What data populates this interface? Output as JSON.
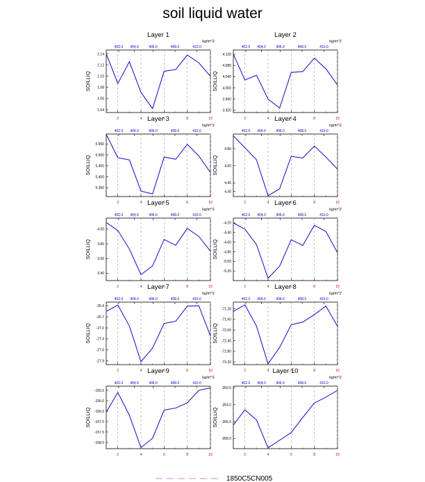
{
  "title": "soil liquid water",
  "colors": {
    "line": "#3a10c8",
    "bottom_ticks": "#c00000",
    "top_ticks": "#0000cc",
    "legend_dash": "#cc88dd"
  },
  "legend": {
    "label": "1850C5CN005"
  },
  "chart_data": [
    {
      "type": "line",
      "title": "Layer 1",
      "ylabel": "SOILLIQ",
      "unit": "kg/m^2",
      "x": [
        1,
        2,
        3,
        4,
        5,
        6,
        7,
        8,
        9,
        10
      ],
      "ylim": [
        1.035,
        1.147
      ],
      "yticks": [
        "1.14",
        "1.12",
        "1.10",
        "1.08",
        "1.06",
        "1.04"
      ],
      "ytick_values": [
        1.14,
        1.12,
        1.1,
        1.08,
        1.06,
        1.04
      ],
      "top_ticks": [
        "402.0",
        "404.0",
        "406.0",
        "408.0",
        "410.0"
      ],
      "series": [
        {
          "values": [
            1.14,
            1.087,
            1.126,
            1.071,
            1.042,
            1.109,
            1.112,
            1.138,
            1.124,
            1.1
          ]
        }
      ]
    },
    {
      "type": "line",
      "title": "Layer 2",
      "ylabel": "SOILLIQ",
      "unit": "kg/m^2",
      "x": [
        1,
        2,
        3,
        4,
        5,
        6,
        7,
        8,
        9,
        10
      ],
      "ylim": [
        3.912,
        4.135
      ],
      "yticks": [
        "4.120",
        "4.080",
        "4.040",
        "4.000",
        "3.960",
        "3.920"
      ],
      "ytick_values": [
        4.12,
        4.08,
        4.04,
        4.0,
        3.96,
        3.92
      ],
      "top_ticks": [
        "402.0",
        "404.0",
        "406.0",
        "408.0",
        "410.0"
      ],
      "series": [
        {
          "values": [
            4.12,
            4.028,
            4.045,
            3.96,
            3.928,
            4.055,
            4.058,
            4.106,
            4.068,
            4.01
          ]
        }
      ]
    },
    {
      "type": "line",
      "title": "Layer 3",
      "ylabel": "SOILLIQ",
      "unit": "kg/m^2",
      "x": [
        1,
        2,
        3,
        4,
        5,
        6,
        7,
        8,
        9,
        10
      ],
      "ylim": [
        5.31,
        5.595
      ],
      "yticks": [
        "5.550",
        "5.500",
        "5.450",
        "5.400",
        "5.350"
      ],
      "ytick_values": [
        5.55,
        5.5,
        5.45,
        5.4,
        5.35
      ],
      "top_ticks": [
        "402.0",
        "404.0",
        "406.0",
        "408.0",
        "410.0"
      ],
      "series": [
        {
          "values": [
            5.593,
            5.487,
            5.477,
            5.335,
            5.322,
            5.49,
            5.48,
            5.548,
            5.495,
            5.42
          ]
        }
      ]
    },
    {
      "type": "line",
      "title": "Layer 4",
      "ylabel": "SOILLIQ",
      "unit": "kg/m^2",
      "x": [
        1,
        2,
        3,
        4,
        5,
        6,
        7,
        8,
        9,
        10
      ],
      "ylim": [
        4.24,
        4.97
      ],
      "yticks": [
        "4.80",
        "4.60",
        "4.40",
        "4.30"
      ],
      "ytick_values": [
        4.8,
        4.6,
        4.4,
        4.3
      ],
      "top_ticks": [
        "402.0",
        "404.0",
        "406.0",
        "408.0",
        "410.0"
      ],
      "series": [
        {
          "values": [
            4.95,
            4.81,
            4.67,
            4.25,
            4.33,
            4.71,
            4.69,
            4.83,
            4.7,
            4.56
          ]
        }
      ]
    },
    {
      "type": "line",
      "title": "Layer 5",
      "ylabel": "SOILLIQ",
      "unit": "kg/m^2",
      "x": [
        1,
        2,
        3,
        4,
        5,
        6,
        7,
        8,
        9,
        10
      ],
      "ylim": [
        3.3,
        4.15
      ],
      "yticks": [
        "4.00",
        "3.80",
        "3.60",
        "3.40"
      ],
      "ytick_values": [
        4.0,
        3.8,
        3.6,
        3.4
      ],
      "top_ticks": [
        "402.0",
        "404.0",
        "406.0",
        "408.0",
        "410.0"
      ],
      "series": [
        {
          "values": [
            4.09,
            3.98,
            3.73,
            3.38,
            3.5,
            3.86,
            3.78,
            4.01,
            3.9,
            3.7
          ]
        }
      ]
    },
    {
      "type": "line",
      "title": "Layer 6",
      "ylabel": "SOILLIQ",
      "unit": "kg/m^2",
      "x": [
        1,
        2,
        3,
        4,
        5,
        6,
        7,
        8,
        9,
        10
      ],
      "ylim": [
        -5.4,
        -4.1
      ],
      "yticks": [
        "-4.20",
        "-4.40",
        "-4.60",
        "-4.80",
        "-5.00",
        "-5.20"
      ],
      "ytick_values": [
        -4.2,
        -4.4,
        -4.6,
        -4.8,
        -5.0,
        -5.2
      ],
      "top_ticks": [
        "402.0",
        "404.0",
        "406.0",
        "408.0",
        "410.0"
      ],
      "series": [
        {
          "values": [
            -4.2,
            -4.33,
            -4.65,
            -5.35,
            -5.1,
            -4.55,
            -4.67,
            -4.25,
            -4.38,
            -4.82
          ]
        }
      ]
    },
    {
      "type": "line",
      "title": "Layer 7",
      "ylabel": "SOILLIQ",
      "unit": "kg/m^2",
      "x": [
        1,
        2,
        3,
        4,
        5,
        6,
        7,
        8,
        9,
        10
      ],
      "ylim": [
        -28.0,
        -26.3
      ],
      "yticks": [
        "-26.4",
        "-26.7",
        "-27.0",
        "-27.3",
        "-27.6",
        "-27.9"
      ],
      "ytick_values": [
        -26.4,
        -26.7,
        -27.0,
        -27.3,
        -27.6,
        -27.9
      ],
      "top_ticks": [
        "402.0",
        "404.0",
        "406.0",
        "408.0",
        "410.0"
      ],
      "series": [
        {
          "values": [
            -26.55,
            -26.38,
            -26.95,
            -27.92,
            -27.55,
            -26.88,
            -26.82,
            -26.41,
            -26.4,
            -27.22
          ]
        }
      ]
    },
    {
      "type": "line",
      "title": "Layer 8",
      "ylabel": "SOILLIQ",
      "unit": "kg/m^2",
      "x": [
        1,
        2,
        3,
        4,
        5,
        6,
        7,
        8,
        9,
        10
      ],
      "ylim": [
        -73.3,
        -70.95
      ],
      "yticks": [
        "-71.20",
        "-71.60",
        "-72.00",
        "-72.40",
        "-72.80",
        "-73.20"
      ],
      "ytick_values": [
        -71.2,
        -71.6,
        -72.0,
        -72.4,
        -72.8,
        -73.2
      ],
      "top_ticks": [
        "402.0",
        "404.0",
        "406.0",
        "408.0",
        "410.0"
      ],
      "series": [
        {
          "values": [
            -71.3,
            -71.05,
            -71.85,
            -73.27,
            -72.65,
            -71.8,
            -71.7,
            -71.42,
            -71.1,
            -71.86
          ]
        }
      ]
    },
    {
      "type": "line",
      "title": "Layer 9",
      "ylabel": "SOILLIQ",
      "unit": "kg/m^2",
      "x": [
        1,
        2,
        3,
        4,
        5,
        6,
        7,
        8,
        9,
        10
      ],
      "ylim": [
        -158.3,
        -155.3
      ],
      "yticks": [
        "-155.5",
        "-156.0",
        "-156.5",
        "-157.0",
        "-157.5",
        "-158.0"
      ],
      "ytick_values": [
        -155.5,
        -156.0,
        -156.5,
        -157.0,
        -157.5,
        -158.0
      ],
      "top_ticks": [
        "402.0",
        "404.0",
        "406.0",
        "408.0",
        "410.0"
      ],
      "series": [
        {
          "values": [
            -156.55,
            -155.6,
            -156.7,
            -158.25,
            -157.8,
            -156.45,
            -156.35,
            -156.1,
            -155.5,
            -155.38
          ]
        }
      ]
    },
    {
      "type": "line",
      "title": "Layer 10",
      "ylabel": "SOILLIQ",
      "unit": "kg/m^2",
      "x": [
        1,
        2,
        3,
        4,
        5,
        6,
        7,
        8,
        9,
        10
      ],
      "ylim": [
        -356.6,
        -352.9
      ],
      "yticks": [
        "-353.0",
        "-354.0",
        "-355.0",
        "-356.0"
      ],
      "ytick_values": [
        -353.0,
        -354.0,
        -355.0,
        -356.0
      ],
      "top_ticks": [
        "402.0",
        "404.0",
        "406.0",
        "408.0",
        "410.0"
      ],
      "series": [
        {
          "values": [
            -355.2,
            -354.3,
            -354.9,
            -356.55,
            -356.1,
            -355.65,
            -354.75,
            -353.9,
            -353.55,
            -353.15
          ]
        }
      ]
    }
  ],
  "x_ticks": [
    "2",
    "4",
    "6",
    "8",
    "10"
  ],
  "x_tick_values": [
    2,
    4,
    6,
    8,
    10
  ],
  "x_range": [
    1,
    10
  ]
}
